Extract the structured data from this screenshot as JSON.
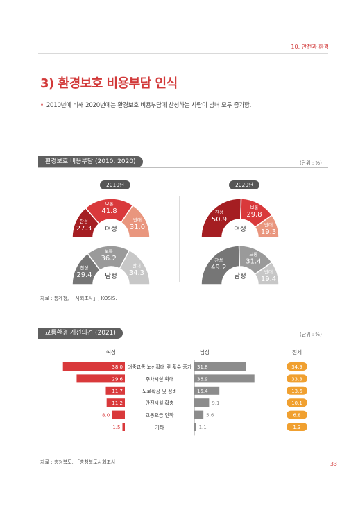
{
  "header": {
    "section": "10. 안전과 환경"
  },
  "title": "3) 환경보호 비용부담 인식",
  "bullet": "2010년에 비해 2020년에는 환경보호 비용부담에 찬성하는 사람이 남녀 모두 증가함.",
  "panel1": {
    "label": "환경보호 비용부담",
    "years_label": "(2010, 2020)",
    "unit": "(단위 : %)",
    "source": "자료 : 통계청, 「사회조사」, KOSIS."
  },
  "panel2": {
    "label": "교통환경 개선의견",
    "years_label": "(2021)",
    "unit": "(단위 : %)",
    "source": "자료 : 충청북도, 「충청북도사회조사」."
  },
  "page_number": "33",
  "colors": {
    "accent": "#d23a3a",
    "women_2010": [
      "#a51e22",
      "#d9393b",
      "#e9967e"
    ],
    "women_2020": [
      "#a51e22",
      "#d9393b",
      "#e9967e"
    ],
    "men": [
      "#767676",
      "#9a9a9a",
      "#c7c7c7"
    ],
    "bar_female": "#d9393b",
    "bar_male": "#8c8c8c",
    "total_badge": "#f0a030"
  },
  "chart_data": [
    {
      "type": "pie",
      "subtype": "semi-donut",
      "title": "환경보호 비용부담",
      "groups": [
        {
          "year": "2010년",
          "center": "여성",
          "slices": [
            {
              "label": "찬성",
              "value": 27.3
            },
            {
              "label": "보통",
              "value": 41.8
            },
            {
              "label": "반대",
              "value": 31.0
            }
          ]
        },
        {
          "year": "2010년",
          "center": "남성",
          "slices": [
            {
              "label": "찬성",
              "value": 29.4
            },
            {
              "label": "보통",
              "value": 36.2
            },
            {
              "label": "반대",
              "value": 34.3
            }
          ]
        },
        {
          "year": "2020년",
          "center": "여성",
          "slices": [
            {
              "label": "찬성",
              "value": 50.9
            },
            {
              "label": "보통",
              "value": 29.8
            },
            {
              "label": "반대",
              "value": 19.3
            }
          ]
        },
        {
          "year": "2020년",
          "center": "남성",
          "slices": [
            {
              "label": "찬성",
              "value": 49.2
            },
            {
              "label": "보통",
              "value": 31.4
            },
            {
              "label": "반대",
              "value": 19.4
            }
          ]
        }
      ]
    },
    {
      "type": "bar",
      "title": "교통환경 개선의견",
      "orientation": "horizontal",
      "headers": {
        "female": "여성",
        "male": "남성",
        "total": "전체"
      },
      "categories": [
        "대중교통 노선확대 및 횟수 증가",
        "주차시설 확대",
        "도로확장 및 정비",
        "안전시설 확충",
        "교통요금 인하",
        "기타"
      ],
      "series": [
        {
          "name": "여성",
          "values": [
            38.0,
            29.6,
            11.7,
            11.2,
            8.0,
            1.5
          ]
        },
        {
          "name": "남성",
          "values": [
            31.8,
            36.9,
            15.4,
            9.1,
            5.6,
            1.1
          ]
        },
        {
          "name": "전체",
          "values": [
            34.9,
            33.3,
            13.6,
            10.1,
            6.8,
            1.3
          ]
        }
      ]
    }
  ]
}
